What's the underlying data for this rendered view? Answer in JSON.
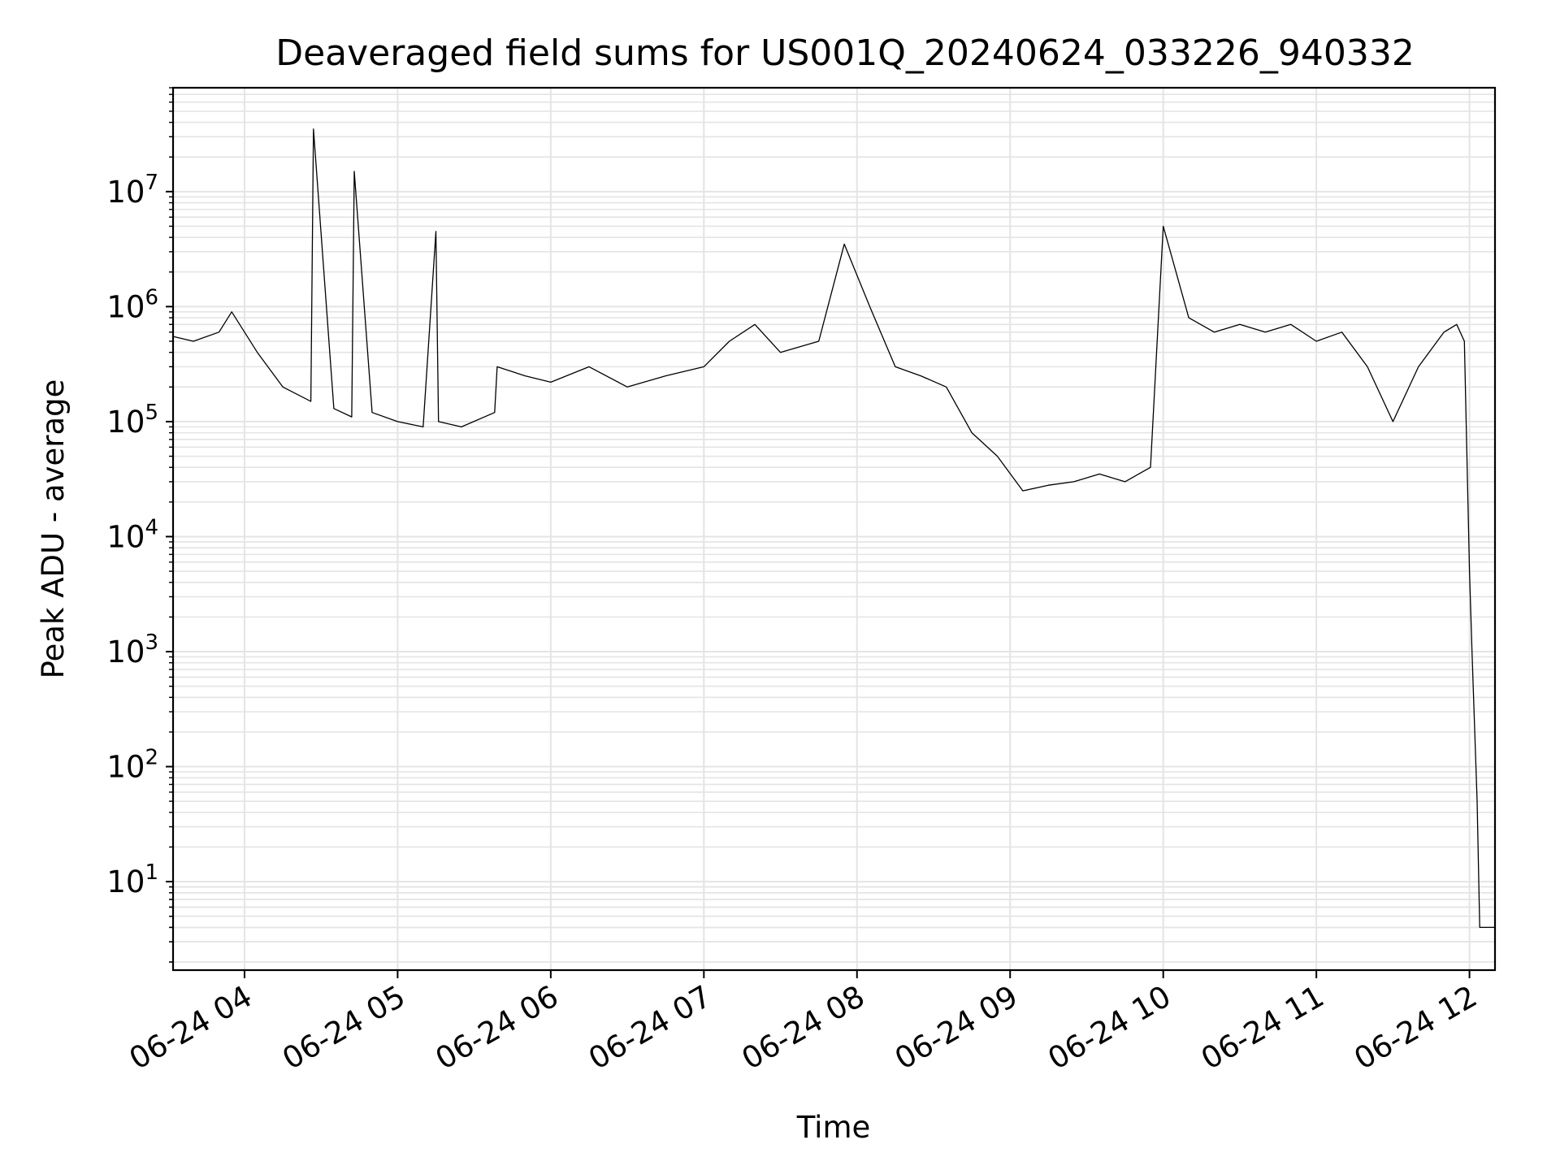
{
  "chart_data": {
    "type": "line",
    "title": "Deaveraged field sums for US001Q_20240624_033226_940332",
    "xlabel": "Time",
    "ylabel": "Peak ADU - average",
    "yscale": "log",
    "ylim": [
      1.7,
      80000000
    ],
    "xlim": [
      "2024-06-24 03:32",
      "2024-06-24 12:10"
    ],
    "grid": true,
    "line_color": "#000000",
    "x_ticks": [
      "06-24 04",
      "06-24 05",
      "06-24 06",
      "06-24 07",
      "06-24 08",
      "06-24 09",
      "06-24 10",
      "06-24 11",
      "06-24 12"
    ],
    "y_ticks": [
      {
        "base": "10",
        "exp": "1",
        "value": 10
      },
      {
        "base": "10",
        "exp": "2",
        "value": 100
      },
      {
        "base": "10",
        "exp": "3",
        "value": 1000
      },
      {
        "base": "10",
        "exp": "4",
        "value": 10000
      },
      {
        "base": "10",
        "exp": "5",
        "value": 100000
      },
      {
        "base": "10",
        "exp": "6",
        "value": 1000000
      },
      {
        "base": "10",
        "exp": "7",
        "value": 10000000
      }
    ],
    "series": [
      {
        "x": [
          "2024-06-24 03:32",
          "2024-06-24 03:40",
          "2024-06-24 03:50",
          "2024-06-24 03:55",
          "2024-06-24 04:05",
          "2024-06-24 04:15",
          "2024-06-24 04:26",
          "2024-06-24 04:27",
          "2024-06-24 04:35",
          "2024-06-24 04:42",
          "2024-06-24 04:43",
          "2024-06-24 04:50",
          "2024-06-24 05:00",
          "2024-06-24 05:10",
          "2024-06-24 05:15",
          "2024-06-24 05:16",
          "2024-06-24 05:25",
          "2024-06-24 05:38",
          "2024-06-24 05:39",
          "2024-06-24 05:50",
          "2024-06-24 06:00",
          "2024-06-24 06:15",
          "2024-06-24 06:30",
          "2024-06-24 06:45",
          "2024-06-24 07:00",
          "2024-06-24 07:10",
          "2024-06-24 07:20",
          "2024-06-24 07:30",
          "2024-06-24 07:45",
          "2024-06-24 07:55",
          "2024-06-24 08:05",
          "2024-06-24 08:15",
          "2024-06-24 08:25",
          "2024-06-24 08:35",
          "2024-06-24 08:45",
          "2024-06-24 08:55",
          "2024-06-24 09:05",
          "2024-06-24 09:15",
          "2024-06-24 09:25",
          "2024-06-24 09:35",
          "2024-06-24 09:45",
          "2024-06-24 09:55",
          "2024-06-24 10:00",
          "2024-06-24 10:10",
          "2024-06-24 10:20",
          "2024-06-24 10:30",
          "2024-06-24 10:40",
          "2024-06-24 10:50",
          "2024-06-24 11:00",
          "2024-06-24 11:10",
          "2024-06-24 11:20",
          "2024-06-24 11:30",
          "2024-06-24 11:40",
          "2024-06-24 11:50",
          "2024-06-24 11:55",
          "2024-06-24 11:58",
          "2024-06-24 12:00",
          "2024-06-24 12:01",
          "2024-06-24 12:03",
          "2024-06-24 12:04",
          "2024-06-24 12:10"
        ],
        "y": [
          550000,
          500000,
          600000,
          900000,
          400000,
          200000,
          150000,
          35000000,
          130000,
          110000,
          15000000,
          120000,
          100000,
          90000,
          4500000,
          100000,
          90000,
          120000,
          300000,
          250000,
          220000,
          300000,
          200000,
          250000,
          300000,
          500000,
          700000,
          400000,
          500000,
          3500000,
          1000000,
          300000,
          250000,
          200000,
          80000,
          50000,
          25000,
          28000,
          30000,
          35000,
          30000,
          40000,
          5000000,
          800000,
          600000,
          700000,
          600000,
          700000,
          500000,
          600000,
          300000,
          100000,
          300000,
          600000,
          700000,
          500000,
          5000,
          1000,
          50,
          4,
          4
        ]
      }
    ]
  }
}
